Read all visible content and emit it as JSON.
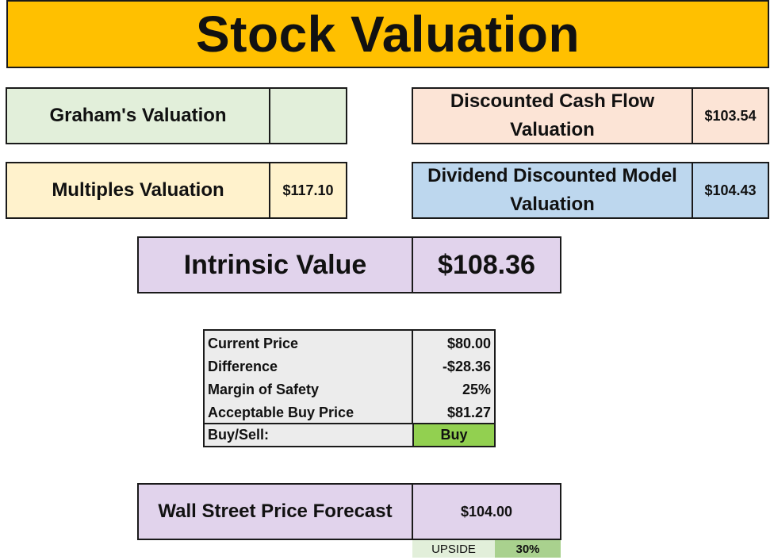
{
  "title": "Stock Valuation",
  "colors": {
    "title_bg": "#ffc000",
    "graham_bg": "#e2efda",
    "multiples_bg": "#fff2cc",
    "dcf_bg": "#fce4d6",
    "ddm_bg": "#bdd7ee",
    "intrinsic_bg": "#e1d3ec",
    "buy_bg": "#92d050"
  },
  "graham": {
    "label": "Graham's Valuation",
    "value": ""
  },
  "multiples": {
    "label": "Multiples Valuation",
    "value": "$117.10"
  },
  "dcf": {
    "label_line1": "Discounted Cash Flow",
    "label_line2": "Valuation",
    "value": "$103.54"
  },
  "ddm": {
    "label_line1": "Dividend Discounted Model",
    "label_line2": "Valuation",
    "value": "$104.43"
  },
  "intrinsic": {
    "label": "Intrinsic Value",
    "value": "$108.36"
  },
  "metrics": {
    "rows": [
      {
        "label": "Current Price",
        "value": "$80.00"
      },
      {
        "label": "Difference",
        "value": "-$28.36"
      },
      {
        "label": "Margin of Safety",
        "value": "25%"
      },
      {
        "label": "Acceptable Buy Price",
        "value": "$81.27"
      }
    ],
    "decision_label": "Buy/Sell:",
    "decision_value": "Buy"
  },
  "forecast": {
    "label": "Wall Street Price Forecast",
    "value": "$104.00"
  },
  "upside": {
    "label": "UPSIDE",
    "value": "30%"
  }
}
